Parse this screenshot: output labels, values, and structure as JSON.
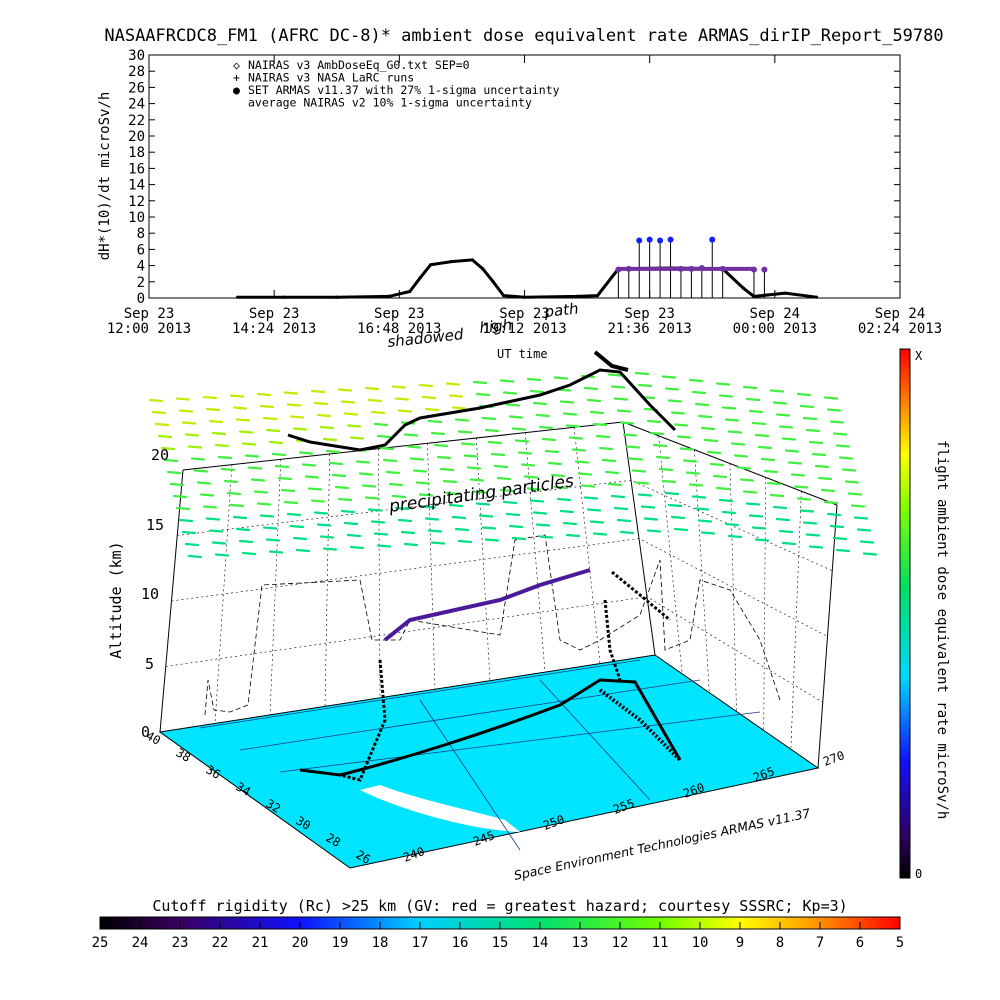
{
  "title": "NASAAFRCDC8_FM1 (AFRC DC-8)* ambient dose equivalent rate ARMAS_dirIP_Report_59780",
  "chart_data": [
    {
      "type": "line",
      "ylabel": "dH*(10)/dt microSv/h",
      "xlabel": "UT time",
      "ylim": [
        0,
        30
      ],
      "yticks": [
        "0",
        "2",
        "4",
        "6",
        "8",
        "10",
        "12",
        "14",
        "16",
        "18",
        "20",
        "22",
        "24",
        "26",
        "28",
        "30"
      ],
      "xticks": [
        {
          "line1": "Sep 23",
          "line2": "12:00 2013"
        },
        {
          "line1": "Sep 23",
          "line2": "14:24 2013"
        },
        {
          "line1": "Sep 23",
          "line2": "16:48 2013"
        },
        {
          "line1": "Sep 23",
          "line2": "19:12 2013"
        },
        {
          "line1": "Sep 23",
          "line2": "21:36 2013"
        },
        {
          "line1": "Sep 24",
          "line2": "00:00 2013"
        },
        {
          "line1": "Sep 24",
          "line2": "02:24 2013"
        }
      ],
      "xlim_hours": [
        12.0,
        26.4
      ],
      "legend": [
        {
          "symbol": "◇",
          "label": "NAIRAS v3 AmbDoseEq_G0.txt SEP=0"
        },
        {
          "symbol": "+",
          "label": "NAIRAS v3 NASA LaRC runs"
        },
        {
          "symbol": "●",
          "label": "SET ARMAS v11.37 with 27% 1-sigma uncertainty"
        },
        {
          "symbol": "",
          "label": "average NAIRAS v2 10% 1-sigma uncertainty"
        }
      ],
      "series": [
        {
          "name": "NAIRAS v3 AmbDoseEq_G0.txt SEP=0",
          "points": [
            [
              13.7,
              0.1
            ],
            [
              14.6,
              0.1
            ],
            [
              15.6,
              0.1
            ],
            [
              16.6,
              0.2
            ],
            [
              17.0,
              0.8
            ],
            [
              17.2,
              2.5
            ],
            [
              17.4,
              4.1
            ],
            [
              17.8,
              4.5
            ],
            [
              18.2,
              4.7
            ],
            [
              18.4,
              3.6
            ],
            [
              18.6,
              2.0
            ],
            [
              18.8,
              0.3
            ],
            [
              19.2,
              0.1
            ],
            [
              20.2,
              0.2
            ],
            [
              20.6,
              0.3
            ],
            [
              21.0,
              3.6
            ],
            [
              22.0,
              3.7
            ],
            [
              23.0,
              3.6
            ],
            [
              23.4,
              1.2
            ],
            [
              23.6,
              0.2
            ],
            [
              24.2,
              0.6
            ],
            [
              24.8,
              0.1
            ]
          ]
        },
        {
          "name": "SET ARMAS v11.37 with 27% 1-sigma uncertainty",
          "points": [
            [
              21.0,
              3.5
            ],
            [
              21.2,
              3.6
            ],
            [
              21.4,
              7.1
            ],
            [
              21.6,
              7.2
            ],
            [
              21.8,
              7.1
            ],
            [
              22.0,
              7.2
            ],
            [
              22.2,
              3.6
            ],
            [
              22.4,
              3.6
            ],
            [
              22.6,
              3.7
            ],
            [
              22.8,
              7.2
            ],
            [
              23.0,
              3.6
            ],
            [
              23.6,
              3.5
            ],
            [
              23.8,
              3.5
            ]
          ]
        }
      ]
    },
    {
      "type": "3d-flight-track",
      "annotations": [
        "shadowed",
        "high",
        "precipitating particles",
        "path"
      ],
      "zlabel": "Altitude (km)",
      "zticks": [
        "0",
        "5",
        "10",
        "15",
        "20"
      ],
      "lat_ticks": [
        "40",
        "38",
        "36",
        "34",
        "32",
        "30",
        "28",
        "26"
      ],
      "lon_ticks": [
        "240",
        "245",
        "250",
        "255",
        "260",
        "265",
        "270"
      ],
      "credit": "Space Environment Technologies ARMAS v11.37",
      "colorbar_label": "flight ambient dose equivalent rate microSv/h",
      "colorbar_range": [
        "0",
        "X"
      ]
    },
    {
      "type": "colorbar",
      "label": "Cutoff rigidity (Rc) >25 km (GV: red = greatest hazard; courtesy SSSRC; Kp=3)",
      "ticks": [
        "25",
        "24",
        "23",
        "22",
        "21",
        "20",
        "19",
        "18",
        "17",
        "16",
        "15",
        "14",
        "13",
        "12",
        "11",
        "10",
        "9",
        "8",
        "7",
        "6",
        "5"
      ]
    }
  ]
}
